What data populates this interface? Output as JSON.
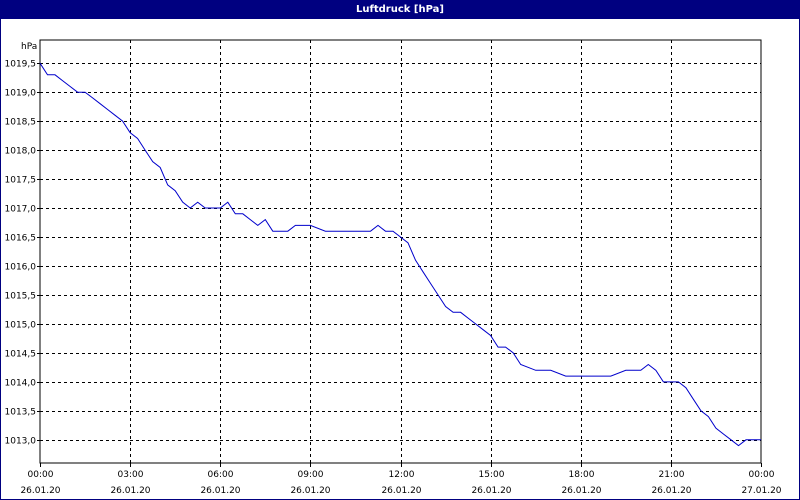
{
  "window": {
    "title": "Luftdruck [hPa]"
  },
  "colors": {
    "titlebar": "#000080",
    "line": "#0000cc",
    "grid": "#000000",
    "background": "#ffffff"
  },
  "chart_data": {
    "type": "line",
    "title": "Luftdruck [hPa]",
    "ylabel": "hPa",
    "xlabel": "",
    "ylim": [
      1012.6,
      1019.9
    ],
    "xlim_hours": [
      0,
      24
    ],
    "grid": true,
    "y_ticks": [
      "1019,5",
      "1019,0",
      "1018,5",
      "1018,0",
      "1017,5",
      "1017,0",
      "1016,5",
      "1016,0",
      "1015,5",
      "1015,0",
      "1014,5",
      "1014,0",
      "1013,5",
      "1013,0"
    ],
    "y_tick_values": [
      1019.5,
      1019.0,
      1018.5,
      1018.0,
      1017.5,
      1017.0,
      1016.5,
      1016.0,
      1015.5,
      1015.0,
      1014.5,
      1014.0,
      1013.5,
      1013.0
    ],
    "x_ticks": [
      {
        "time": "00:00",
        "date": "26.01.20"
      },
      {
        "time": "03:00",
        "date": "26.01.20"
      },
      {
        "time": "06:00",
        "date": "26.01.20"
      },
      {
        "time": "09:00",
        "date": "26.01.20"
      },
      {
        "time": "12:00",
        "date": "26.01.20"
      },
      {
        "time": "15:00",
        "date": "26.01.20"
      },
      {
        "time": "18:00",
        "date": "26.01.20"
      },
      {
        "time": "21:00",
        "date": "26.01.20"
      },
      {
        "time": "00:00",
        "date": "27.01.20"
      }
    ],
    "x_tick_hours": [
      0,
      3,
      6,
      9,
      12,
      15,
      18,
      21,
      24
    ],
    "series": [
      {
        "x_hours": [
          0,
          0.25,
          0.5,
          0.75,
          1,
          1.25,
          1.5,
          1.75,
          2,
          2.25,
          2.5,
          2.75,
          3,
          3.25,
          3.5,
          3.75,
          4,
          4.25,
          4.5,
          4.75,
          5,
          5.25,
          5.5,
          5.75,
          6,
          6.25,
          6.5,
          6.75,
          7,
          7.25,
          7.5,
          7.75,
          8,
          8.25,
          8.5,
          9,
          9.5,
          10,
          10.5,
          11,
          11.25,
          11.5,
          11.75,
          12,
          12.25,
          12.5,
          12.75,
          13,
          13.25,
          13.5,
          13.75,
          14,
          14.25,
          14.5,
          14.75,
          15,
          15.25,
          15.5,
          15.75,
          16,
          16.5,
          17,
          17.5,
          18,
          18.5,
          19,
          19.5,
          20,
          20.25,
          20.5,
          20.75,
          21,
          21.25,
          21.5,
          21.75,
          22,
          22.25,
          22.5,
          22.75,
          23,
          23.25,
          23.5,
          23.75,
          24
        ],
        "values": [
          1019.5,
          1019.3,
          1019.3,
          1019.2,
          1019.1,
          1019.0,
          1019.0,
          1018.9,
          1018.8,
          1018.7,
          1018.6,
          1018.5,
          1018.3,
          1018.2,
          1018.0,
          1017.8,
          1017.7,
          1017.4,
          1017.3,
          1017.1,
          1017.0,
          1017.1,
          1017.0,
          1017.0,
          1017.0,
          1017.1,
          1016.9,
          1016.9,
          1016.8,
          1016.7,
          1016.8,
          1016.6,
          1016.6,
          1016.6,
          1016.7,
          1016.7,
          1016.6,
          1016.6,
          1016.6,
          1016.6,
          1016.7,
          1016.6,
          1016.6,
          1016.5,
          1016.4,
          1016.1,
          1015.9,
          1015.7,
          1015.5,
          1015.3,
          1015.2,
          1015.2,
          1015.1,
          1015.0,
          1014.9,
          1014.8,
          1014.6,
          1014.6,
          1014.5,
          1014.3,
          1014.2,
          1014.2,
          1014.1,
          1014.1,
          1014.1,
          1014.1,
          1014.2,
          1014.2,
          1014.3,
          1014.2,
          1014.0,
          1014.0,
          1014.0,
          1013.9,
          1013.7,
          1013.5,
          1013.4,
          1013.2,
          1013.1,
          1013.0,
          1012.9,
          1013.0,
          1013.0,
          1013.0
        ]
      }
    ]
  }
}
